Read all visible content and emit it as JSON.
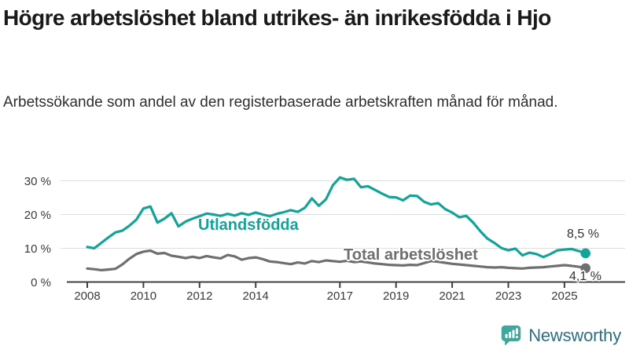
{
  "title": "Högre arbetslöshet bland utrikes- än inrikesfödda i Hjo",
  "subtitle": "Arbetssökande som andel av den registerbaserade arbetskraften månad för månad.",
  "logo": {
    "text": "Newsworthy",
    "icon": "newsworthy-chart-bubble-icon"
  },
  "colors": {
    "foreign": "#14a399",
    "total": "#6f6f6f",
    "grid": "#dcdcdc",
    "axis": "#404040",
    "title": "#1a1a1a",
    "body": "#2e2e2e",
    "tick": "#3a3a3a",
    "value": "#333333",
    "logo_icon": "#3fa79b",
    "logo_text": "#2e7080"
  },
  "chart_data": {
    "type": "line",
    "x_start": 2008,
    "x_step": 0.25,
    "x_ticks": [
      2008,
      2010,
      2012,
      2014,
      2017,
      2019,
      2021,
      2023,
      2025
    ],
    "x_tick_labels": [
      "2008",
      "2010",
      "2012",
      "2014",
      "2017",
      "2019",
      "2021",
      "2023",
      "2025"
    ],
    "y_ticks": [
      0,
      10,
      20,
      30
    ],
    "y_tick_labels": [
      "0 %",
      "10 %",
      "20 %",
      "30 %"
    ],
    "ylim": [
      0,
      33
    ],
    "grid": true,
    "legend_position": "direct-line-labels",
    "series": [
      {
        "id": "utlandsfodda",
        "name": "Utlandsfödda",
        "end_label": "8,5 %",
        "end_value": 8.5,
        "values": [
          10.4,
          10.0,
          11.6,
          13.2,
          14.7,
          15.2,
          16.7,
          18.5,
          21.8,
          22.4,
          17.6,
          18.8,
          20.4,
          16.5,
          17.9,
          18.8,
          19.5,
          20.3,
          20.0,
          19.6,
          20.2,
          19.7,
          20.4,
          19.9,
          20.6,
          20.0,
          19.5,
          20.2,
          20.7,
          21.3,
          20.8,
          22.0,
          24.8,
          22.6,
          24.5,
          28.7,
          31.0,
          30.3,
          30.6,
          28.1,
          28.4,
          27.3,
          26.2,
          25.2,
          25.1,
          24.2,
          25.6,
          25.5,
          23.8,
          23.0,
          23.4,
          21.6,
          20.6,
          19.2,
          19.6,
          17.6,
          15.1,
          12.9,
          11.6,
          10.1,
          9.4,
          9.9,
          7.9,
          8.7,
          8.3,
          7.4,
          8.3,
          9.4,
          9.6,
          9.8,
          9.2,
          8.5
        ]
      },
      {
        "id": "total-arbetsloshet",
        "name": "Total arbetslöshet",
        "end_label": "4,1 %",
        "end_value": 4.1,
        "values": [
          4.0,
          3.8,
          3.5,
          3.7,
          3.9,
          5.2,
          6.9,
          8.3,
          9.0,
          9.3,
          8.4,
          8.6,
          7.8,
          7.5,
          7.1,
          7.5,
          7.1,
          7.7,
          7.3,
          7.0,
          8.0,
          7.6,
          6.6,
          7.1,
          7.3,
          6.8,
          6.1,
          5.9,
          5.6,
          5.3,
          5.8,
          5.5,
          6.2,
          5.9,
          6.4,
          6.2,
          6.0,
          6.3,
          5.9,
          6.1,
          5.8,
          5.5,
          5.3,
          5.1,
          5.0,
          4.9,
          5.1,
          5.0,
          5.6,
          6.2,
          6.0,
          5.7,
          5.4,
          5.2,
          5.0,
          4.8,
          4.6,
          4.4,
          4.3,
          4.4,
          4.2,
          4.1,
          4.0,
          4.2,
          4.3,
          4.4,
          4.6,
          4.8,
          5.0,
          4.8,
          4.5,
          4.1
        ]
      }
    ]
  }
}
